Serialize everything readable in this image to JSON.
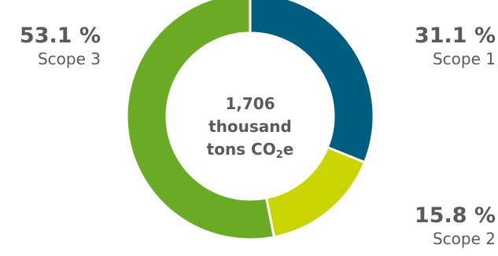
{
  "chart_data": {
    "type": "pie",
    "variant": "donut",
    "categories": [
      "Scope 1",
      "Scope 2",
      "Scope 3"
    ],
    "values": [
      31.1,
      15.8,
      53.1
    ],
    "value_labels": [
      "31.1 %",
      "15.8 %",
      "53.1 %"
    ],
    "colors": [
      "#005d7f",
      "#cad400",
      "#6aaa25"
    ],
    "center_label": {
      "value": "1,706",
      "unit_line1": "thousand",
      "unit_line2_prefix": "tons CO",
      "unit_line2_sub": "2",
      "unit_line2_suffix": "e"
    },
    "legend": "none"
  }
}
